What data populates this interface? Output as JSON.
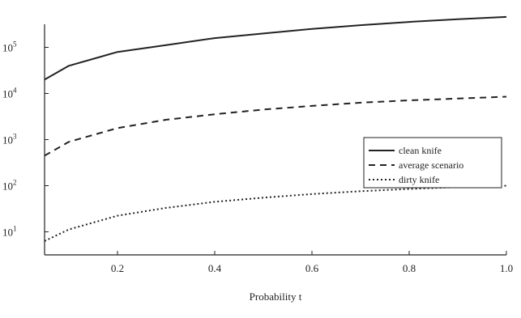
{
  "chart_data": {
    "type": "line",
    "title": "",
    "xlabel": "Probability t",
    "ylabel": "",
    "xlim": [
      0.05,
      1.0
    ],
    "ylim": [
      0.5,
      5.5
    ],
    "y_scale": "log",
    "x_ticks": [
      {
        "value": 0.2,
        "label": "0.2"
      },
      {
        "value": 0.4,
        "label": "0.4"
      },
      {
        "value": 0.6,
        "label": "0.6"
      },
      {
        "value": 0.8,
        "label": "0.8"
      },
      {
        "value": 1.0,
        "label": "1.0"
      }
    ],
    "y_ticks": [
      {
        "exp": 1,
        "base": "10",
        "exp_label": "1"
      },
      {
        "exp": 2,
        "base": "10",
        "exp_label": "2"
      },
      {
        "exp": 3,
        "base": "10",
        "exp_label": "3"
      },
      {
        "exp": 4,
        "base": "10",
        "exp_label": "4"
      },
      {
        "exp": 5,
        "base": "10",
        "exp_label": "5"
      }
    ],
    "grid": false,
    "legend_position": "right",
    "series": [
      {
        "name": "clean knife",
        "style": "solid",
        "color": "#222222",
        "x": [
          0.05,
          0.1,
          0.2,
          0.3,
          0.4,
          0.5,
          0.6,
          0.7,
          0.8,
          0.9,
          1.0
        ],
        "y": [
          4.3,
          4.6,
          4.9,
          5.05,
          5.2,
          5.3,
          5.4,
          5.48,
          5.55,
          5.61,
          5.66
        ]
      },
      {
        "name": "average scenario",
        "style": "dashed",
        "color": "#222222",
        "x": [
          0.05,
          0.1,
          0.2,
          0.3,
          0.4,
          0.5,
          0.6,
          0.7,
          0.8,
          0.9,
          1.0
        ],
        "y": [
          2.65,
          2.95,
          3.25,
          3.43,
          3.55,
          3.65,
          3.73,
          3.8,
          3.85,
          3.89,
          3.93
        ]
      },
      {
        "name": "dirty knife",
        "style": "dotted",
        "color": "#222222",
        "x": [
          0.05,
          0.1,
          0.2,
          0.3,
          0.4,
          0.5,
          0.6,
          0.7,
          0.8,
          0.9,
          1.0
        ],
        "y": [
          0.8,
          1.05,
          1.35,
          1.52,
          1.65,
          1.74,
          1.82,
          1.88,
          1.93,
          1.97,
          2.0
        ]
      }
    ]
  }
}
